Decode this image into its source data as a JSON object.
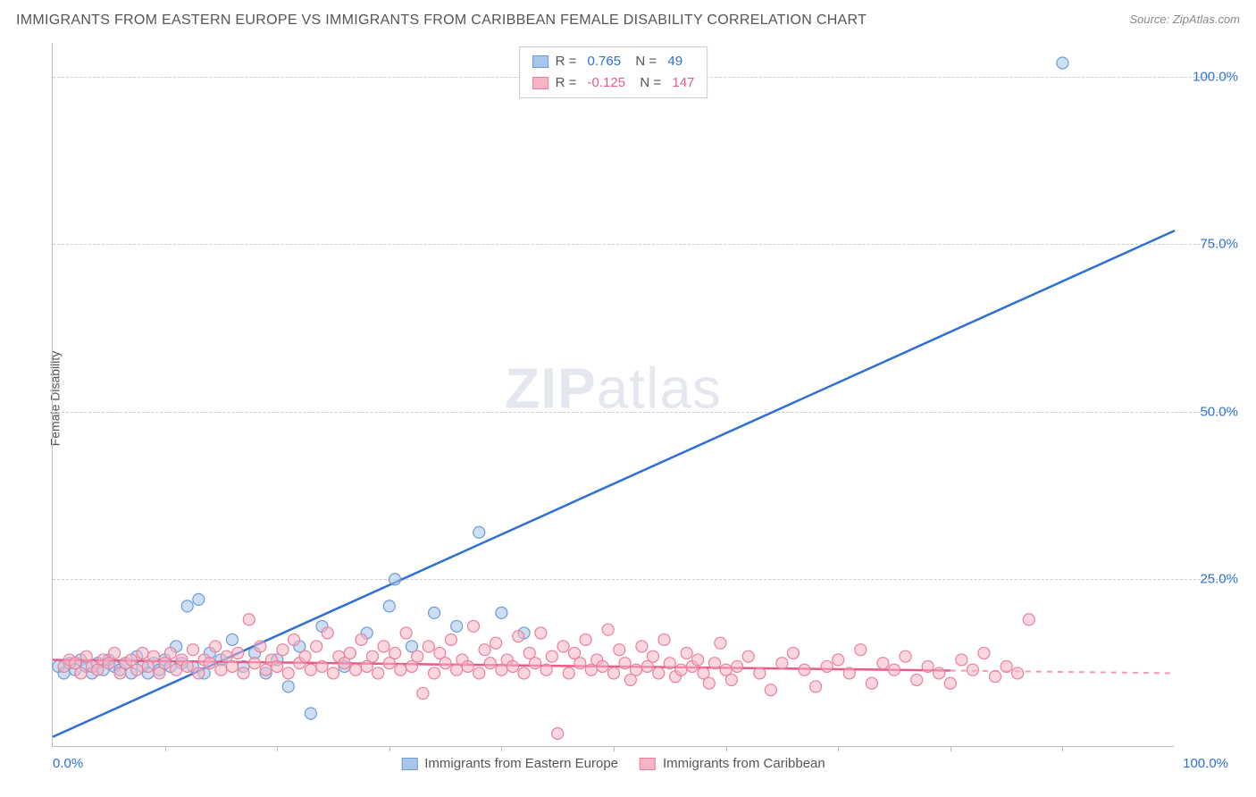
{
  "title": "IMMIGRANTS FROM EASTERN EUROPE VS IMMIGRANTS FROM CARIBBEAN FEMALE DISABILITY CORRELATION CHART",
  "source": "Source: ZipAtlas.com",
  "ylabel": "Female Disability",
  "watermark_bold": "ZIP",
  "watermark_rest": "atlas",
  "xlim": [
    0,
    100
  ],
  "ylim": [
    0,
    105
  ],
  "yticks": [
    {
      "v": 25,
      "label": "25.0%"
    },
    {
      "v": 50,
      "label": "50.0%"
    },
    {
      "v": 75,
      "label": "75.0%"
    },
    {
      "v": 100,
      "label": "100.0%"
    }
  ],
  "xticks_minor": [
    10,
    20,
    30,
    40,
    50,
    60,
    70,
    80,
    90
  ],
  "xlabels": [
    {
      "v": 0,
      "label": "0.0%"
    },
    {
      "v": 100,
      "label": "100.0%"
    }
  ],
  "series": {
    "blue": {
      "name": "Immigrants from Eastern Europe",
      "R": "0.765",
      "N": "49",
      "fill": "#a8c5ea",
      "stroke": "#6b9bd8",
      "fill_opacity": 0.55,
      "line_color": "#2d6fd6",
      "label_color": "#2d6fd6",
      "line": {
        "x1": 0,
        "y1": 1.5,
        "x2": 100,
        "y2": 77
      },
      "line_extent_x": 100,
      "points": [
        [
          0.5,
          12
        ],
        [
          1,
          11
        ],
        [
          1.5,
          12.5
        ],
        [
          2,
          11.5
        ],
        [
          2.5,
          13
        ],
        [
          3,
          12
        ],
        [
          3.5,
          11
        ],
        [
          4,
          12.5
        ],
        [
          4.5,
          11.5
        ],
        [
          5,
          13
        ],
        [
          5.5,
          12
        ],
        [
          6,
          11.5
        ],
        [
          6.5,
          12.5
        ],
        [
          7,
          11
        ],
        [
          7.5,
          13.5
        ],
        [
          8,
          12
        ],
        [
          8.5,
          11
        ],
        [
          9,
          12.5
        ],
        [
          9.5,
          11.5
        ],
        [
          10,
          13
        ],
        [
          10.5,
          12
        ],
        [
          11,
          15
        ],
        [
          11.5,
          12.5
        ],
        [
          12,
          21
        ],
        [
          12.5,
          12
        ],
        [
          13,
          22
        ],
        [
          13.5,
          11
        ],
        [
          14,
          14
        ],
        [
          15,
          13
        ],
        [
          16,
          16
        ],
        [
          17,
          12
        ],
        [
          18,
          14
        ],
        [
          19,
          11
        ],
        [
          20,
          13
        ],
        [
          21,
          9
        ],
        [
          22,
          15
        ],
        [
          23,
          5
        ],
        [
          24,
          18
        ],
        [
          26,
          12
        ],
        [
          28,
          17
        ],
        [
          30,
          21
        ],
        [
          30.5,
          25
        ],
        [
          32,
          15
        ],
        [
          34,
          20
        ],
        [
          36,
          18
        ],
        [
          38,
          32
        ],
        [
          40,
          20
        ],
        [
          42,
          17
        ],
        [
          90,
          102
        ]
      ]
    },
    "pink": {
      "name": "Immigrants from Caribbean",
      "R": "-0.125",
      "N": "147",
      "fill": "#f5b5c4",
      "stroke": "#ea7f9b",
      "fill_opacity": 0.55,
      "line_color": "#e85a87",
      "label_color": "#e85a87",
      "line": {
        "x1": 0,
        "y1": 13,
        "x2": 100,
        "y2": 11
      },
      "line_extent_x": 80,
      "points": [
        [
          1,
          12
        ],
        [
          1.5,
          13
        ],
        [
          2,
          12.5
        ],
        [
          2.5,
          11
        ],
        [
          3,
          13.5
        ],
        [
          3.5,
          12
        ],
        [
          4,
          11.5
        ],
        [
          4.5,
          13
        ],
        [
          5,
          12.5
        ],
        [
          5.5,
          14
        ],
        [
          6,
          11
        ],
        [
          6.5,
          12.5
        ],
        [
          7,
          13
        ],
        [
          7.5,
          11.5
        ],
        [
          8,
          14
        ],
        [
          8.5,
          12
        ],
        [
          9,
          13.5
        ],
        [
          9.5,
          11
        ],
        [
          10,
          12.5
        ],
        [
          10.5,
          14
        ],
        [
          11,
          11.5
        ],
        [
          11.5,
          13
        ],
        [
          12,
          12
        ],
        [
          12.5,
          14.5
        ],
        [
          13,
          11
        ],
        [
          13.5,
          13
        ],
        [
          14,
          12.5
        ],
        [
          14.5,
          15
        ],
        [
          15,
          11.5
        ],
        [
          15.5,
          13.5
        ],
        [
          16,
          12
        ],
        [
          16.5,
          14
        ],
        [
          17,
          11
        ],
        [
          17.5,
          19
        ],
        [
          18,
          12.5
        ],
        [
          18.5,
          15
        ],
        [
          19,
          11.5
        ],
        [
          19.5,
          13
        ],
        [
          20,
          12
        ],
        [
          20.5,
          14.5
        ],
        [
          21,
          11
        ],
        [
          21.5,
          16
        ],
        [
          22,
          12.5
        ],
        [
          22.5,
          13.5
        ],
        [
          23,
          11.5
        ],
        [
          23.5,
          15
        ],
        [
          24,
          12
        ],
        [
          24.5,
          17
        ],
        [
          25,
          11
        ],
        [
          25.5,
          13.5
        ],
        [
          26,
          12.5
        ],
        [
          26.5,
          14
        ],
        [
          27,
          11.5
        ],
        [
          27.5,
          16
        ],
        [
          28,
          12
        ],
        [
          28.5,
          13.5
        ],
        [
          29,
          11
        ],
        [
          29.5,
          15
        ],
        [
          30,
          12.5
        ],
        [
          30.5,
          14
        ],
        [
          31,
          11.5
        ],
        [
          31.5,
          17
        ],
        [
          32,
          12
        ],
        [
          32.5,
          13.5
        ],
        [
          33,
          8
        ],
        [
          33.5,
          15
        ],
        [
          34,
          11
        ],
        [
          34.5,
          14
        ],
        [
          35,
          12.5
        ],
        [
          35.5,
          16
        ],
        [
          36,
          11.5
        ],
        [
          36.5,
          13
        ],
        [
          37,
          12
        ],
        [
          37.5,
          18
        ],
        [
          38,
          11
        ],
        [
          38.5,
          14.5
        ],
        [
          39,
          12.5
        ],
        [
          39.5,
          15.5
        ],
        [
          40,
          11.5
        ],
        [
          40.5,
          13
        ],
        [
          41,
          12
        ],
        [
          41.5,
          16.5
        ],
        [
          42,
          11
        ],
        [
          42.5,
          14
        ],
        [
          43,
          12.5
        ],
        [
          43.5,
          17
        ],
        [
          44,
          11.5
        ],
        [
          44.5,
          13.5
        ],
        [
          45,
          2
        ],
        [
          45.5,
          15
        ],
        [
          46,
          11
        ],
        [
          46.5,
          14
        ],
        [
          47,
          12.5
        ],
        [
          47.5,
          16
        ],
        [
          48,
          11.5
        ],
        [
          48.5,
          13
        ],
        [
          49,
          12
        ],
        [
          49.5,
          17.5
        ],
        [
          50,
          11
        ],
        [
          50.5,
          14.5
        ],
        [
          51,
          12.5
        ],
        [
          51.5,
          10
        ],
        [
          52,
          11.5
        ],
        [
          52.5,
          15
        ],
        [
          53,
          12
        ],
        [
          53.5,
          13.5
        ],
        [
          54,
          11
        ],
        [
          54.5,
          16
        ],
        [
          55,
          12.5
        ],
        [
          55.5,
          10.5
        ],
        [
          56,
          11.5
        ],
        [
          56.5,
          14
        ],
        [
          57,
          12
        ],
        [
          57.5,
          13
        ],
        [
          58,
          11
        ],
        [
          58.5,
          9.5
        ],
        [
          59,
          12.5
        ],
        [
          59.5,
          15.5
        ],
        [
          60,
          11.5
        ],
        [
          60.5,
          10
        ],
        [
          61,
          12
        ],
        [
          62,
          13.5
        ],
        [
          63,
          11
        ],
        [
          64,
          8.5
        ],
        [
          65,
          12.5
        ],
        [
          66,
          14
        ],
        [
          67,
          11.5
        ],
        [
          68,
          9
        ],
        [
          69,
          12
        ],
        [
          70,
          13
        ],
        [
          71,
          11
        ],
        [
          72,
          14.5
        ],
        [
          73,
          9.5
        ],
        [
          74,
          12.5
        ],
        [
          75,
          11.5
        ],
        [
          76,
          13.5
        ],
        [
          77,
          10
        ],
        [
          78,
          12
        ],
        [
          79,
          11
        ],
        [
          80,
          9.5
        ],
        [
          81,
          13
        ],
        [
          82,
          11.5
        ],
        [
          83,
          14
        ],
        [
          84,
          10.5
        ],
        [
          85,
          12
        ],
        [
          86,
          11
        ],
        [
          87,
          19
        ]
      ]
    }
  },
  "marker_radius": 6.5,
  "background": "#ffffff",
  "grid_color": "#cccccc"
}
